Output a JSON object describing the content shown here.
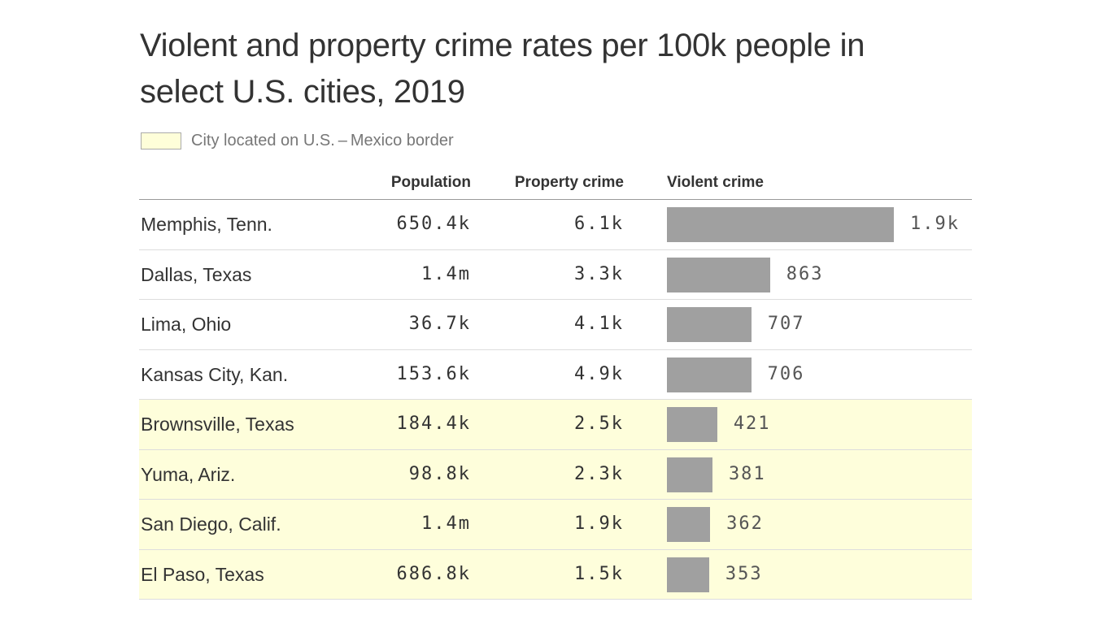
{
  "chart_data": {
    "type": "table",
    "title": "Violent and property crime rates per 100k people in select U.S. cities, 2019",
    "legend": {
      "label": "City located on U.S. – Mexico border",
      "color": "#fefed9"
    },
    "columns": [
      "",
      "Population",
      "Property crime",
      "Violent crime"
    ],
    "bar_color": "#a0a0a0",
    "rows": [
      {
        "city": "Memphis, Tenn.",
        "population": "650.4k",
        "property": "6.1k",
        "violent_label": "1.9k",
        "violent": 1900,
        "border": false
      },
      {
        "city": "Dallas, Texas",
        "population": "1.4m",
        "property": "3.3k",
        "violent_label": "863",
        "violent": 863,
        "border": false
      },
      {
        "city": "Lima, Ohio",
        "population": "36.7k",
        "property": "4.1k",
        "violent_label": "707",
        "violent": 707,
        "border": false
      },
      {
        "city": "Kansas City, Kan.",
        "population": "153.6k",
        "property": "4.9k",
        "violent_label": "706",
        "violent": 706,
        "border": false
      },
      {
        "city": "Brownsville, Texas",
        "population": "184.4k",
        "property": "2.5k",
        "violent_label": "421",
        "violent": 421,
        "border": true
      },
      {
        "city": "Yuma, Ariz.",
        "population": "98.8k",
        "property": "2.3k",
        "violent_label": "381",
        "violent": 381,
        "border": true
      },
      {
        "city": "San Diego, Calif.",
        "population": "1.4m",
        "property": "1.9k",
        "violent_label": "362",
        "violent": 362,
        "border": true
      },
      {
        "city": "El Paso, Texas",
        "population": "686.8k",
        "property": "1.5k",
        "violent_label": "353",
        "violent": 353,
        "border": true
      }
    ]
  }
}
